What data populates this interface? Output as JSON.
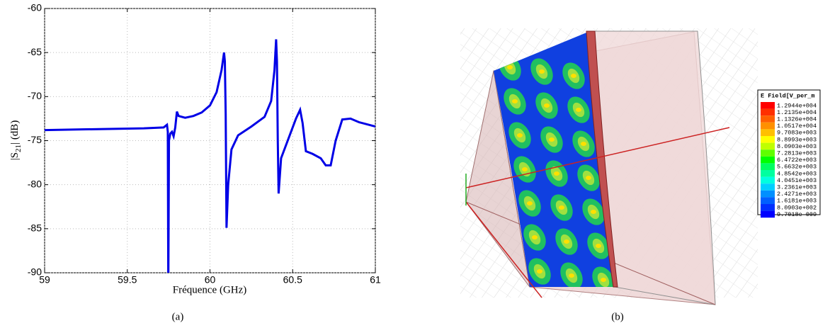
{
  "chart_data": {
    "type": "line",
    "xlabel": "Fréquence (GHz)",
    "ylabel": [
      "|S",
      "21",
      "| (dB)"
    ],
    "xlim": [
      59,
      61
    ],
    "ylim": [
      -90,
      -60
    ],
    "xticks": [
      59,
      59.5,
      60,
      60.5,
      61
    ],
    "yticks": [
      -90,
      -85,
      -80,
      -75,
      -70,
      -65,
      -60
    ],
    "grid": true,
    "series": [
      {
        "color": "#0000e6",
        "x": [
          59.0,
          59.3,
          59.6,
          59.72,
          59.74,
          59.745,
          59.748,
          59.752,
          59.76,
          59.77,
          59.78,
          59.79,
          59.8,
          59.81,
          59.85,
          59.9,
          59.95,
          60.0,
          60.04,
          60.07,
          60.085,
          60.09,
          60.095,
          60.1,
          60.11,
          60.13,
          60.17,
          60.25,
          60.33,
          60.37,
          60.39,
          60.4,
          60.405,
          60.41,
          60.415,
          60.43,
          60.47,
          60.52,
          60.545,
          60.56,
          60.58,
          60.62,
          60.67,
          60.7,
          60.73,
          60.76,
          60.8,
          60.85,
          60.9,
          61.0
        ],
        "values": [
          -73.8,
          -73.7,
          -73.6,
          -73.5,
          -73.2,
          -74,
          -92,
          -75,
          -74.2,
          -74.0,
          -74.5,
          -73.5,
          -71.7,
          -72.2,
          -72.4,
          -72.2,
          -71.8,
          -71.0,
          -69.5,
          -67,
          -65,
          -66,
          -72,
          -84.9,
          -80,
          -76,
          -74.4,
          -73.4,
          -72.3,
          -70.5,
          -67,
          -63.5,
          -66,
          -75,
          -81,
          -77,
          -75,
          -72.5,
          -71.5,
          -73,
          -76.2,
          -76.5,
          -77,
          -77.8,
          -77.8,
          -75,
          -72.6,
          -72.5,
          -72.9,
          -73.4
        ]
      }
    ]
  },
  "field_legend": {
    "title": "E Field[V_per_m",
    "labels": [
      "1.2944e+004",
      "1.2135e+004",
      "1.1326e+004",
      "1.0517e+004",
      "9.7083e+003",
      "8.8993e+003",
      "8.0903e+003",
      "7.2813e+003",
      "6.4722e+003",
      "5.6632e+003",
      "4.8542e+003",
      "4.0451e+003",
      "3.2361e+003",
      "2.4271e+003",
      "1.6181e+003",
      "8.0903e+002",
      "9.7018e-009"
    ],
    "colors": [
      "#ff0000",
      "#ff3000",
      "#ff6000",
      "#ff9000",
      "#ffc000",
      "#ffff00",
      "#c0ff00",
      "#60ff00",
      "#00ff00",
      "#00ff60",
      "#00ffa0",
      "#00ffe0",
      "#00d0ff",
      "#0090ff",
      "#0060ff",
      "#0030ff",
      "#0000ff"
    ]
  },
  "captions": [
    "(a)",
    "(b)"
  ]
}
